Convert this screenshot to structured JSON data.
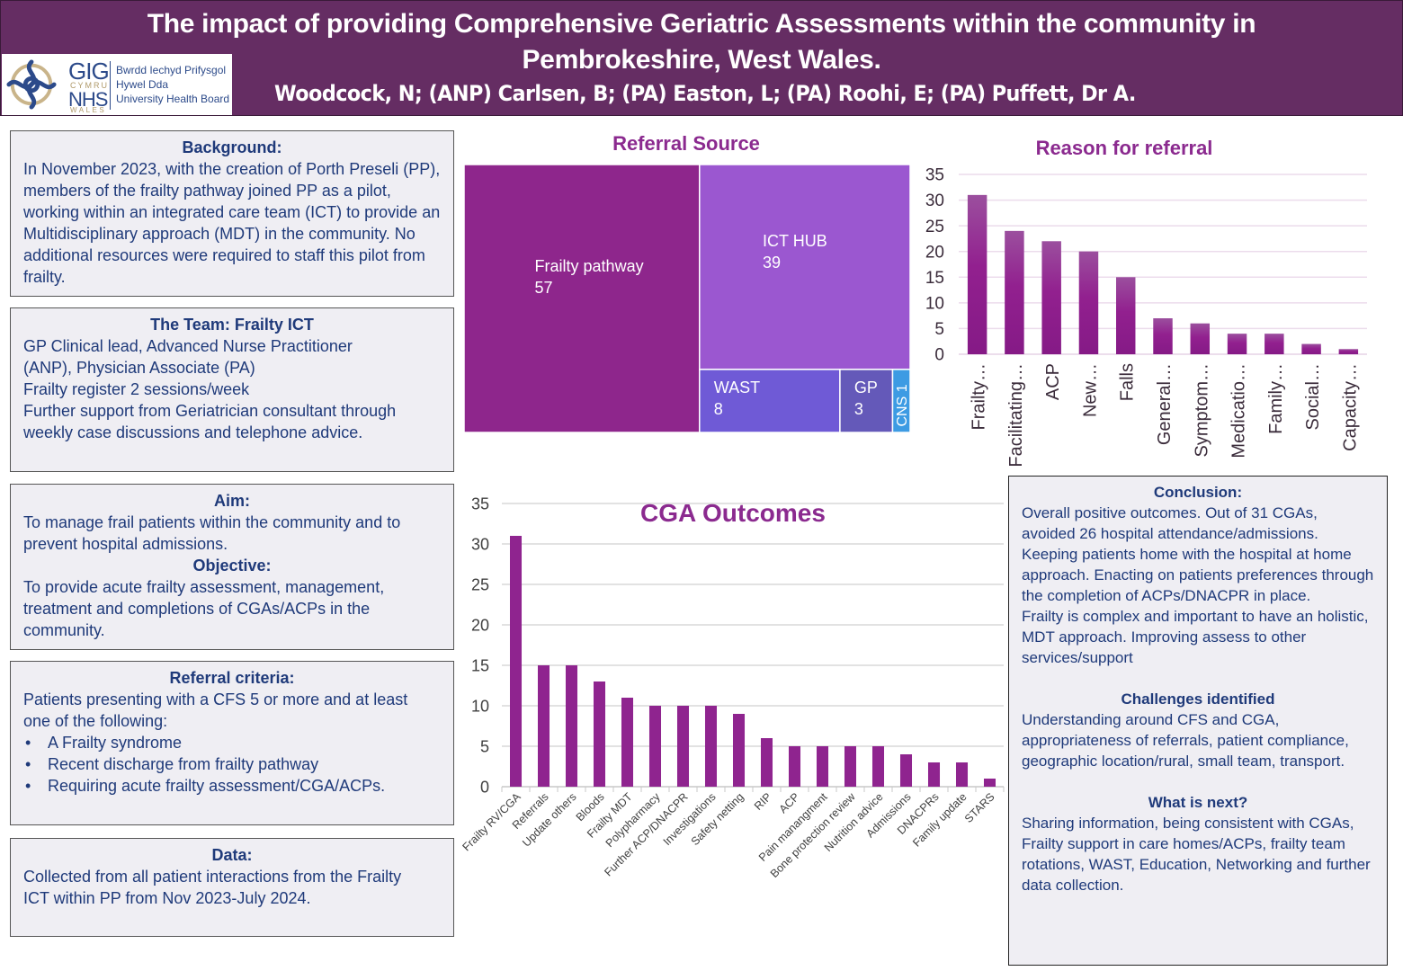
{
  "header": {
    "title_line1": "The impact of providing Comprehensive Geriatric Assessments within the community in",
    "title_line2": "Pembrokeshire, West Wales.",
    "authors": "Woodcock, N; (ANP) Carlsen, B; (PA) Easton, L; (PA) Roohi, E; (PA) Puffett, Dr A.",
    "logo": {
      "icon": "celtic-knot-icon",
      "gig": "GIG",
      "cymru": "CYMRU",
      "nhs": "NHS",
      "wales": "WALES",
      "board_lines": [
        "Bwrdd Iechyd Prifysgol",
        "Hywel Dda",
        "University Health Board"
      ]
    }
  },
  "background": {
    "heading": "Background:",
    "text": "In November 2023, with the creation of Porth Preseli (PP), members of the frailty pathway joined PP as a pilot, working within an integrated care team (ICT) to provide an Multidisciplinary approach (MDT) in the community. No additional resources were required to staff this pilot from frailty."
  },
  "team": {
    "heading": "The Team: Frailty ICT",
    "lines": [
      "GP Clinical lead, Advanced Nurse Practitioner (ANP), Physician Associate (PA)",
      "Frailty register 2 sessions/week",
      "Further support from Geriatrician consultant through weekly case discussions and telephone advice."
    ]
  },
  "aim": {
    "heading": "Aim:",
    "text": "To manage frail patients within the community and to prevent hospital admissions.",
    "objective_heading": "Objective:",
    "objective_text": "To provide acute frailty assessment, management, treatment and completions of CGAs/ACPs in the community."
  },
  "criteria": {
    "heading": "Referral criteria:",
    "intro": "Patients presenting with a CFS 5 or more and at least one of the following:",
    "bullets": [
      "A Frailty syndrome",
      "Recent discharge from frailty pathway",
      "Requiring acute frailty assessment/CGA/ACPs."
    ]
  },
  "data_box": {
    "heading": "Data:",
    "text": "Collected from all patient interactions from the Frailty ICT within PP from Nov 2023-July 2024."
  },
  "conclusion": {
    "heading": "Conclusion:",
    "text1": "Overall positive outcomes. Out of 31 CGAs, avoided 26 hospital attendance/admissions. Keeping patients home with the hospital at home approach. Enacting on patients preferences through the completion of ACPs/DNACPR in place.",
    "text2": "Frailty is complex and important to have an holistic, MDT approach. Improving assess to other services/support",
    "challenges_heading": "Challenges identified",
    "challenges_text": "Understanding around CFS and CGA, appropriateness of referrals, patient compliance, geographic location/rural, small team, transport.",
    "next_heading": "What is next?",
    "next_text": "Sharing information, being consistent with CGAs, Frailty support in care homes/ACPs, frailty team rotations, WAST, Education, Networking and further data collection."
  },
  "colors": {
    "header_bg": "#652d63",
    "chart_title": "#8b2a8f",
    "bar": "#8f248f",
    "text_blue": "#1f3a7a"
  },
  "chart_data": [
    {
      "id": "referral_source",
      "type": "treemap",
      "title": "Referral Source",
      "categories": [
        "Frailty pathway",
        "ICT HUB",
        "WAST",
        "GP",
        "CNS"
      ],
      "values": [
        57,
        39,
        8,
        3,
        1
      ],
      "colors": [
        "#8e268c",
        "#9b57d0",
        "#6f5ad6",
        "#6459b9",
        "#3d9be3"
      ]
    },
    {
      "id": "reason_for_referral",
      "type": "bar",
      "title": "Reason for referral",
      "categories": [
        "Frailty…",
        "Facilitating…",
        "ACP",
        "New…",
        "Falls",
        "General…",
        "Symptom…",
        "Medicatio…",
        "Family…",
        "Social…",
        "Capacity…"
      ],
      "values": [
        31,
        24,
        22,
        20,
        15,
        7,
        6,
        4,
        4,
        2,
        1
      ],
      "ylim": [
        0,
        35
      ],
      "yticks": [
        0,
        5,
        10,
        15,
        20,
        25,
        30,
        35
      ],
      "grid": true,
      "xlabel": "",
      "ylabel": ""
    },
    {
      "id": "cga_outcomes",
      "type": "bar",
      "title": "CGA Outcomes",
      "categories": [
        "Frailty RV/CGA",
        "Referrals",
        "Update others",
        "Bloods",
        "Frailty MDT",
        "Polypharmacy",
        "Further ACP/DNACPR",
        "Investigations",
        "Safety netting",
        "RIP",
        "ACP",
        "Pain manangment",
        "Bone protection review",
        "Nutrition advice",
        "Admissions",
        "DNACPRs",
        "Family update",
        "STARS"
      ],
      "values": [
        31,
        15,
        15,
        13,
        11,
        10,
        10,
        10,
        9,
        6,
        5,
        5,
        5,
        5,
        4,
        3,
        3,
        1
      ],
      "ylim": [
        0,
        35
      ],
      "yticks": [
        0,
        5,
        10,
        15,
        20,
        25,
        30,
        35
      ],
      "grid": true,
      "xlabel": "",
      "ylabel": ""
    }
  ]
}
